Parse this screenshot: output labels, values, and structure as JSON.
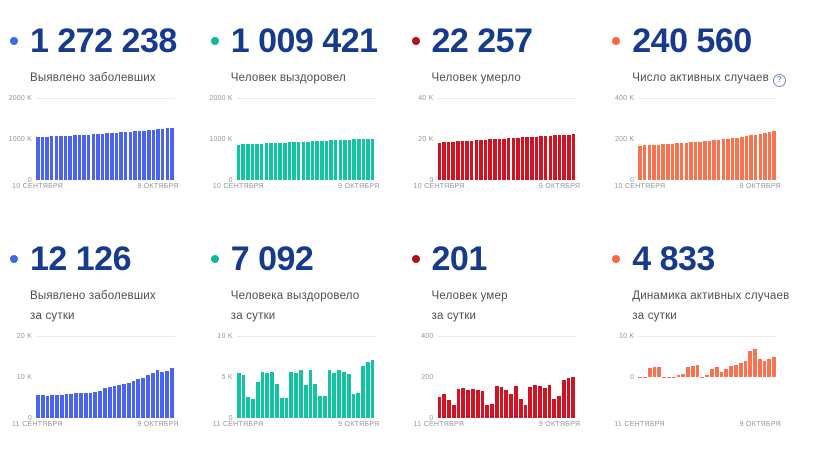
{
  "cards": [
    {
      "value": "1 272 238",
      "label_lines": [
        "Выявлено заболевших"
      ],
      "dot_color": "#3d6be2"
    },
    {
      "value": "1 009 421",
      "label_lines": [
        "Человек выздоровел"
      ],
      "dot_color": "#10b89b"
    },
    {
      "value": "22 257",
      "label_lines": [
        "Человек умерло"
      ],
      "dot_color": "#b0121f"
    },
    {
      "value": "240 560",
      "label_lines": [
        "Число активных случаев"
      ],
      "dot_color": "#f4683e",
      "info_icon": "?"
    },
    {
      "value": "12 126",
      "label_lines": [
        "Выявлено заболевших",
        "за сутки"
      ],
      "dot_color": "#3d6be2"
    },
    {
      "value": "7 092",
      "label_lines": [
        "Человека выздоровело",
        "за сутки"
      ],
      "dot_color": "#10b89b"
    },
    {
      "value": "201",
      "label_lines": [
        "Человек умер",
        "за сутки"
      ],
      "dot_color": "#b0121f"
    },
    {
      "value": "4 833",
      "label_lines": [
        "Динамика активных случаев",
        "за сутки"
      ],
      "dot_color": "#f4683e"
    }
  ],
  "chart_data": [
    {
      "type": "bar",
      "title": "Выявлено заболевших",
      "color": "#4a63f0",
      "ylim": [
        0,
        2000000
      ],
      "legend": "none",
      "grid": "top-line-only",
      "yticks": [
        {
          "label": "2000 K",
          "value": 2000000
        },
        {
          "label": "1000 K",
          "value": 1000000
        },
        {
          "label": "0",
          "value": 0
        }
      ],
      "x_start_label": "10 СЕНТЯБРЯ",
      "x_end_label": "9 ОКТЯБРЯ",
      "values": [
        1046370,
        1051874,
        1057362,
        1062811,
        1068320,
        1073849,
        1079519,
        1085281,
        1091186,
        1097178,
        1103399,
        1109595,
        1115810,
        1122241,
        1128836,
        1136048,
        1143571,
        1151438,
        1159573,
        1167805,
        1176286,
        1185231,
        1194643,
        1204502,
        1215001,
        1225889,
        1237504,
        1248619,
        1260112,
        1272238
      ]
    },
    {
      "type": "bar",
      "title": "Человек выздоровел",
      "color": "#10c5a0",
      "ylim": [
        0,
        2000000
      ],
      "legend": "none",
      "grid": "top-line-only",
      "yticks": [
        {
          "label": "2000 K",
          "value": 2000000
        },
        {
          "label": "1000 K",
          "value": 1000000
        },
        {
          "label": "0",
          "value": 0
        }
      ],
      "x_start_label": "10 СЕНТЯБРЯ",
      "x_end_label": "9 ОКТЯБРЯ",
      "values": [
        862373,
        867443,
        872513,
        877583,
        882653,
        887723,
        892793,
        897863,
        902933,
        908003,
        913073,
        918143,
        923213,
        928283,
        933353,
        938423,
        943493,
        948563,
        953633,
        958703,
        963773,
        968843,
        973913,
        978983,
        984053,
        989123,
        994193,
        999263,
        1004333,
        1009421
      ]
    },
    {
      "type": "bar",
      "title": "Человек умерло",
      "color": "#d01223",
      "ylim": [
        0,
        40000
      ],
      "legend": "none",
      "grid": "top-line-only",
      "yticks": [
        {
          "label": "40 K",
          "value": 40000
        },
        {
          "label": "20 K",
          "value": 20000
        },
        {
          "label": "0",
          "value": 0
        }
      ],
      "x_start_label": "10 СЕНТЯБРЯ",
      "x_end_label": "9 ОКТЯБРЯ",
      "values": [
        18263,
        18401,
        18539,
        18677,
        18815,
        18953,
        19091,
        19229,
        19367,
        19505,
        19643,
        19781,
        19919,
        20057,
        20195,
        20333,
        20471,
        20609,
        20747,
        20885,
        21023,
        21161,
        21299,
        21437,
        21575,
        21713,
        21851,
        21989,
        22127,
        22257
      ]
    },
    {
      "type": "bar",
      "title": "Число активных случаев",
      "color": "#fa7351",
      "ylim": [
        0,
        400000
      ],
      "legend": "none",
      "grid": "top-line-only",
      "yticks": [
        {
          "label": "400 K",
          "value": 400000
        },
        {
          "label": "200 K",
          "value": 200000
        },
        {
          "label": "0",
          "value": 0
        }
      ],
      "x_start_label": "10 СЕНТЯБРЯ",
      "x_end_label": "9 ОКТЯБРЯ",
      "values": [
        168000,
        169500,
        170800,
        171900,
        173000,
        174200,
        175500,
        176900,
        178400,
        180000,
        181700,
        183500,
        185400,
        187400,
        189500,
        191700,
        194000,
        196400,
        198900,
        201500,
        204300,
        207300,
        210500,
        213900,
        217500,
        221300,
        225400,
        229800,
        234900,
        240560
      ]
    },
    {
      "type": "bar",
      "title": "Выявлено заболевших за сутки",
      "color": "#4a63f0",
      "ylim": [
        0,
        20000
      ],
      "legend": "none",
      "grid": "top-line-only",
      "yticks": [
        {
          "label": "20 K",
          "value": 20000
        },
        {
          "label": "10 K",
          "value": 10000
        },
        {
          "label": "0",
          "value": 0
        }
      ],
      "x_start_label": "11 СЕНТЯБРЯ",
      "x_end_label": "9 ОКТЯБРЯ",
      "values": [
        5488,
        5504,
        5449,
        5509,
        5529,
        5670,
        5762,
        5905,
        5992,
        6148,
        6196,
        6215,
        6431,
        6595,
        7212,
        7523,
        7867,
        8135,
        8232,
        8481,
        8945,
        9412,
        9859,
        10499,
        10888,
        11615,
        11115,
        11493,
        12126
      ]
    },
    {
      "type": "bar",
      "title": "Человека выздоровело за сутки",
      "color": "#10c5a0",
      "ylim": [
        0,
        10000
      ],
      "legend": "none",
      "grid": "top-line-only",
      "yticks": [
        {
          "label": "10 K",
          "value": 10000
        },
        {
          "label": "5 K",
          "value": 5000
        },
        {
          "label": "0",
          "value": 0
        }
      ],
      "x_start_label": "11 СЕНТЯБРЯ",
      "x_end_label": "9 ОКТЯБРЯ",
      "values": [
        5449,
        5246,
        2560,
        2337,
        4341,
        5627,
        5546,
        5627,
        4124,
        2439,
        2476,
        5622,
        5443,
        5824,
        4027,
        5888,
        4155,
        2740,
        2664,
        5904,
        5518,
        5817,
        5640,
        5423,
        2912,
        3015,
        6345,
        6811,
        7092
      ]
    },
    {
      "type": "bar",
      "title": "Человек умер за сутки",
      "color": "#d01223",
      "ylim": [
        0,
        400
      ],
      "legend": "none",
      "grid": "top-line-only",
      "yticks": [
        {
          "label": "400",
          "value": 400
        },
        {
          "label": "200",
          "value": 200
        },
        {
          "label": "0",
          "value": 0
        }
      ],
      "x_start_label": "11 СЕНТЯБРЯ",
      "x_end_label": "9 ОКТЯБРЯ",
      "values": [
        104,
        115,
        90,
        61,
        142,
        145,
        135,
        141,
        136,
        130,
        62,
        68,
        155,
        150,
        138,
        118,
        158,
        92,
        61,
        150,
        160,
        155,
        148,
        160,
        92,
        108,
        186,
        195,
        201
      ]
    },
    {
      "type": "bar",
      "title": "Динамика активных случаев за сутки",
      "color": "#fa7351",
      "ylim": [
        -10000,
        10000
      ],
      "legend": "none",
      "grid": "top-line-only",
      "yticks": [
        {
          "label": "10 K",
          "value": 10000
        },
        {
          "label": "0",
          "value": 0
        }
      ],
      "x_start_label": "11 СЕНТЯБРЯ",
      "x_end_label": "9 ОКТЯБРЯ",
      "values": [
        -200,
        -150,
        2300,
        2400,
        2500,
        -200,
        -150,
        -100,
        500,
        700,
        2400,
        2700,
        2900,
        -100,
        400,
        1900,
        2500,
        1200,
        2000,
        2600,
        3000,
        3400,
        4000,
        6300,
        6900,
        4400,
        3900,
        4300,
        4833
      ]
    }
  ]
}
